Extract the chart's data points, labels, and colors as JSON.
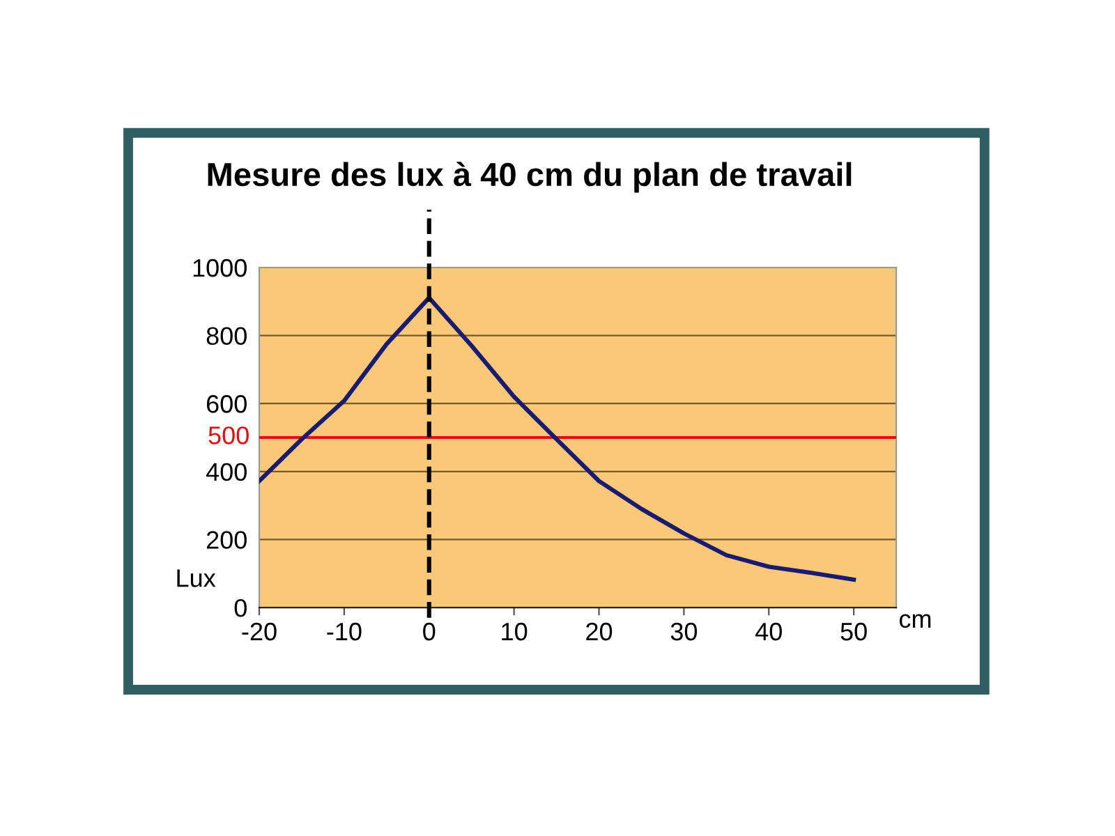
{
  "chart_data": {
    "type": "line",
    "title": "Mesure des lux à 40 cm du plan de travail",
    "xlabel": "cm",
    "ylabel": "Lux",
    "x": [
      -20,
      -15,
      -10,
      -5,
      0,
      5,
      10,
      15,
      20,
      25,
      30,
      35,
      40,
      45,
      50
    ],
    "series": [
      {
        "color": "#1a1a6e",
        "values": [
          372,
          495,
          608,
          775,
          911,
          770,
          620,
          495,
          372,
          290,
          218,
          154,
          120,
          102,
          82
        ]
      }
    ],
    "xlim": [
      -20,
      55
    ],
    "xticks": [
      -20,
      -10,
      0,
      10,
      20,
      30,
      40,
      50
    ],
    "ylim": [
      0,
      1000
    ],
    "yticks": [
      0,
      200,
      400,
      600,
      800,
      1000
    ],
    "grid": "y",
    "legend": false,
    "marker": "none",
    "line_style": "solid",
    "ref_lines": [
      {
        "axis": "y",
        "value": 500,
        "label": "500",
        "color": "#e01010",
        "line_style": "solid"
      },
      {
        "axis": "x",
        "value": 0,
        "color": "#000000",
        "line_style": "dashed"
      }
    ]
  }
}
